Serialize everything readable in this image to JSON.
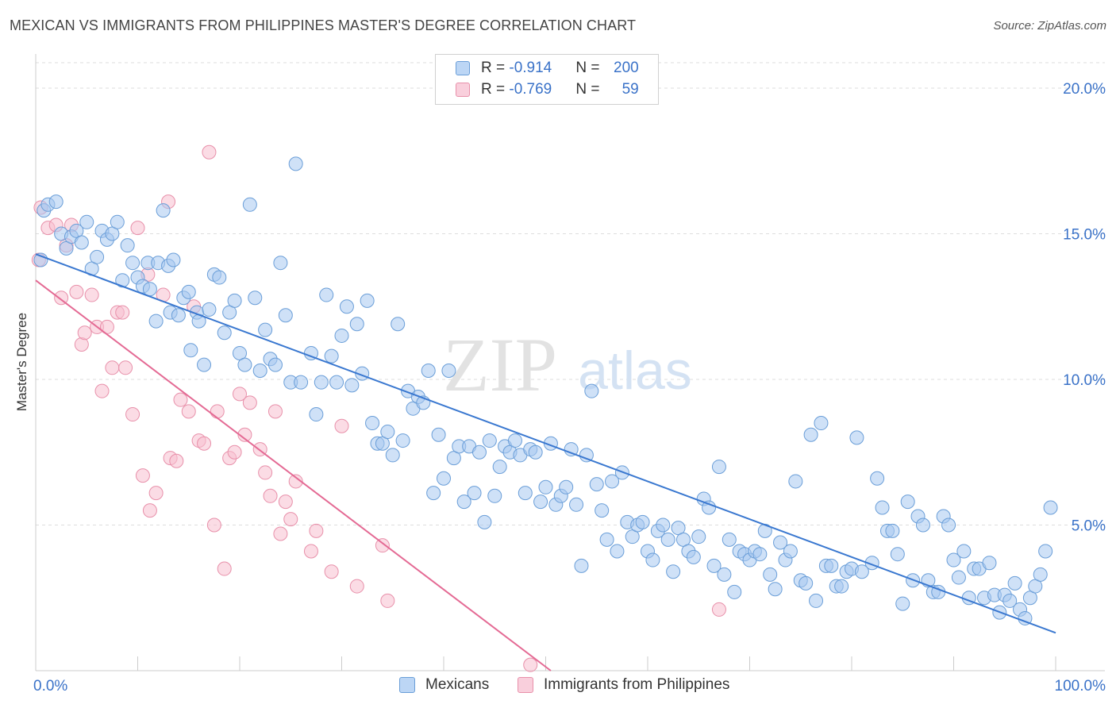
{
  "title": "MEXICAN VS IMMIGRANTS FROM PHILIPPINES MASTER'S DEGREE CORRELATION CHART",
  "source": "Source: ZipAtlas.com",
  "watermark": {
    "zip": "ZIP",
    "atlas": "atlas"
  },
  "legend_top": {
    "series1": {
      "r_label": "R = ",
      "r_value": "-0.914",
      "n_label": "N = ",
      "n_value": "200"
    },
    "series2": {
      "r_label": "R = ",
      "r_value": "-0.769",
      "n_label": "N = ",
      "n_value": "59"
    }
  },
  "legend_bottom": [
    "Mexicans",
    "Immigrants from Philippines"
  ],
  "colors": {
    "blue_fill": "#a8c8f0",
    "blue_stroke": "#6a9ed8",
    "blue_line": "#3a78d0",
    "pink_fill": "#f7bfd0",
    "pink_stroke": "#e890aa",
    "pink_line": "#e46a94",
    "axis_text": "#3a72c8",
    "grid": "#dddddd"
  },
  "chart_data": {
    "type": "scatter",
    "title": "MEXICAN VS IMMIGRANTS FROM PHILIPPINES MASTER'S DEGREE CORRELATION CHART",
    "xlabel": "",
    "ylabel": "Master's Degree",
    "xlim": [
      0,
      100
    ],
    "ylim": [
      0,
      20
    ],
    "x_tick_labels": [
      "0.0%",
      "100.0%"
    ],
    "y_ticks": [
      5,
      10,
      15,
      20
    ],
    "y_tick_labels": [
      "5.0%",
      "10.0%",
      "15.0%",
      "20.0%"
    ],
    "grid": "horizontal dashed",
    "legend": "top-center",
    "series": [
      {
        "name": "Mexicans",
        "r": -0.914,
        "n": 200,
        "trend": {
          "x": [
            0,
            100
          ],
          "y": [
            14.3,
            1.3
          ]
        },
        "points": [
          [
            0.5,
            14.1
          ],
          [
            0.8,
            15.8
          ],
          [
            1.2,
            16.0
          ],
          [
            2,
            16.1
          ],
          [
            2.5,
            15.0
          ],
          [
            3,
            14.5
          ],
          [
            3.5,
            14.9
          ],
          [
            4,
            15.1
          ],
          [
            4.5,
            14.7
          ],
          [
            5,
            15.4
          ],
          [
            5.5,
            13.8
          ],
          [
            6,
            14.2
          ],
          [
            6.5,
            15.1
          ],
          [
            7,
            14.8
          ],
          [
            7.5,
            15.0
          ],
          [
            8,
            15.4
          ],
          [
            8.5,
            13.4
          ],
          [
            9,
            14.6
          ],
          [
            9.5,
            14.0
          ],
          [
            10,
            13.5
          ],
          [
            10.5,
            13.2
          ],
          [
            11,
            14.0
          ],
          [
            11.2,
            13.1
          ],
          [
            11.8,
            12.0
          ],
          [
            12,
            14.0
          ],
          [
            12.5,
            15.8
          ],
          [
            13,
            13.9
          ],
          [
            13.5,
            14.1
          ],
          [
            13.2,
            12.3
          ],
          [
            14,
            12.2
          ],
          [
            14.5,
            12.8
          ],
          [
            15,
            13.0
          ],
          [
            15.2,
            11.0
          ],
          [
            15.8,
            12.3
          ],
          [
            16,
            12.0
          ],
          [
            16.5,
            10.5
          ],
          [
            17,
            12.4
          ],
          [
            17.5,
            13.6
          ],
          [
            18,
            13.5
          ],
          [
            18.5,
            11.6
          ],
          [
            19,
            12.3
          ],
          [
            19.5,
            12.7
          ],
          [
            20,
            10.9
          ],
          [
            20.5,
            10.5
          ],
          [
            21,
            16.0
          ],
          [
            21.5,
            12.8
          ],
          [
            22,
            10.3
          ],
          [
            22.5,
            11.7
          ],
          [
            23,
            10.7
          ],
          [
            23.5,
            10.5
          ],
          [
            24,
            14.0
          ],
          [
            24.5,
            12.2
          ],
          [
            25,
            9.9
          ],
          [
            25.5,
            17.4
          ],
          [
            26,
            9.9
          ],
          [
            27,
            10.9
          ],
          [
            27.5,
            8.8
          ],
          [
            28,
            9.9
          ],
          [
            28.5,
            12.9
          ],
          [
            29,
            10.8
          ],
          [
            29.5,
            9.9
          ],
          [
            30,
            11.5
          ],
          [
            30.5,
            12.5
          ],
          [
            31,
            9.8
          ],
          [
            31.5,
            11.9
          ],
          [
            32,
            10.2
          ],
          [
            32.5,
            12.7
          ],
          [
            33,
            8.5
          ],
          [
            33.5,
            7.8
          ],
          [
            34,
            7.8
          ],
          [
            34.5,
            8.2
          ],
          [
            35,
            7.4
          ],
          [
            35.5,
            11.9
          ],
          [
            36,
            7.9
          ],
          [
            36.5,
            9.6
          ],
          [
            37,
            9.0
          ],
          [
            37.5,
            9.4
          ],
          [
            38,
            9.2
          ],
          [
            38.5,
            10.3
          ],
          [
            39,
            6.1
          ],
          [
            39.5,
            8.1
          ],
          [
            40,
            6.6
          ],
          [
            40.5,
            10.3
          ],
          [
            41,
            7.3
          ],
          [
            41.5,
            7.7
          ],
          [
            42,
            5.8
          ],
          [
            42.5,
            7.7
          ],
          [
            43,
            6.1
          ],
          [
            43.5,
            7.5
          ],
          [
            44,
            5.1
          ],
          [
            44.5,
            7.9
          ],
          [
            45,
            6.0
          ],
          [
            45.5,
            7.0
          ],
          [
            46,
            7.7
          ],
          [
            46.5,
            7.5
          ],
          [
            47,
            7.9
          ],
          [
            47.5,
            7.4
          ],
          [
            48,
            6.1
          ],
          [
            48.5,
            7.6
          ],
          [
            49,
            7.5
          ],
          [
            49.5,
            5.8
          ],
          [
            50,
            6.3
          ],
          [
            50.5,
            7.8
          ],
          [
            51,
            5.7
          ],
          [
            51.5,
            6.0
          ],
          [
            52,
            6.3
          ],
          [
            52.5,
            7.6
          ],
          [
            53,
            5.7
          ],
          [
            53.5,
            3.6
          ],
          [
            54,
            7.4
          ],
          [
            54.5,
            9.6
          ],
          [
            55,
            6.4
          ],
          [
            55.5,
            5.5
          ],
          [
            56,
            4.5
          ],
          [
            56.5,
            6.5
          ],
          [
            57,
            4.1
          ],
          [
            57.5,
            6.8
          ],
          [
            58,
            5.1
          ],
          [
            58.5,
            4.6
          ],
          [
            59,
            5.0
          ],
          [
            59.5,
            5.1
          ],
          [
            60,
            4.1
          ],
          [
            60.5,
            3.8
          ],
          [
            61,
            4.8
          ],
          [
            61.5,
            5.0
          ],
          [
            62,
            4.5
          ],
          [
            62.5,
            3.4
          ],
          [
            63,
            4.9
          ],
          [
            63.5,
            4.5
          ],
          [
            64,
            4.1
          ],
          [
            64.5,
            3.9
          ],
          [
            65,
            4.6
          ],
          [
            65.5,
            5.9
          ],
          [
            66,
            5.6
          ],
          [
            66.5,
            3.6
          ],
          [
            67,
            7.0
          ],
          [
            67.5,
            3.3
          ],
          [
            68,
            4.5
          ],
          [
            68.5,
            2.7
          ],
          [
            69,
            4.1
          ],
          [
            69.5,
            4.0
          ],
          [
            70,
            3.8
          ],
          [
            70.5,
            4.1
          ],
          [
            71,
            4.0
          ],
          [
            71.5,
            4.8
          ],
          [
            72,
            3.3
          ],
          [
            72.5,
            2.8
          ],
          [
            73,
            4.4
          ],
          [
            73.5,
            3.8
          ],
          [
            74,
            4.1
          ],
          [
            74.5,
            6.5
          ],
          [
            75,
            3.1
          ],
          [
            75.5,
            3.0
          ],
          [
            76,
            8.1
          ],
          [
            76.5,
            2.4
          ],
          [
            77,
            8.5
          ],
          [
            77.5,
            3.6
          ],
          [
            78,
            3.6
          ],
          [
            78.5,
            2.9
          ],
          [
            79,
            2.9
          ],
          [
            79.5,
            3.4
          ],
          [
            80,
            3.5
          ],
          [
            80.5,
            8.0
          ],
          [
            81,
            3.4
          ],
          [
            82,
            3.7
          ],
          [
            82.5,
            6.6
          ],
          [
            83,
            5.6
          ],
          [
            83.5,
            4.8
          ],
          [
            84,
            4.8
          ],
          [
            84.5,
            4.0
          ],
          [
            85,
            2.3
          ],
          [
            85.5,
            5.8
          ],
          [
            86,
            3.1
          ],
          [
            86.5,
            5.3
          ],
          [
            87,
            5.0
          ],
          [
            87.5,
            3.1
          ],
          [
            88,
            2.7
          ],
          [
            88.5,
            2.7
          ],
          [
            89,
            5.3
          ],
          [
            89.5,
            5.0
          ],
          [
            90,
            3.8
          ],
          [
            90.5,
            3.2
          ],
          [
            91,
            4.1
          ],
          [
            91.5,
            2.5
          ],
          [
            92,
            3.5
          ],
          [
            92.5,
            3.5
          ],
          [
            93,
            2.5
          ],
          [
            93.5,
            3.7
          ],
          [
            94,
            2.6
          ],
          [
            94.5,
            2.0
          ],
          [
            95,
            2.6
          ],
          [
            95.5,
            2.4
          ],
          [
            96,
            3.0
          ],
          [
            96.5,
            2.1
          ],
          [
            97,
            1.8
          ],
          [
            97.5,
            2.5
          ],
          [
            98,
            2.9
          ],
          [
            98.5,
            3.3
          ],
          [
            99,
            4.1
          ],
          [
            99.5,
            5.6
          ]
        ]
      },
      {
        "name": "Immigrants from Philippines",
        "r": -0.769,
        "n": 59,
        "trend": {
          "x": [
            0,
            50.5
          ],
          "y": [
            13.4,
            0
          ]
        },
        "points": [
          [
            0.3,
            14.1
          ],
          [
            0.5,
            15.9
          ],
          [
            1.2,
            15.2
          ],
          [
            2,
            15.3
          ],
          [
            2.5,
            12.8
          ],
          [
            3,
            14.6
          ],
          [
            3.5,
            15.3
          ],
          [
            4,
            13.0
          ],
          [
            4.5,
            11.2
          ],
          [
            4.8,
            11.6
          ],
          [
            5.5,
            12.9
          ],
          [
            6,
            11.8
          ],
          [
            6.5,
            9.6
          ],
          [
            7,
            11.8
          ],
          [
            7.5,
            10.4
          ],
          [
            8,
            12.3
          ],
          [
            8.5,
            12.3
          ],
          [
            8.8,
            10.4
          ],
          [
            9.5,
            8.8
          ],
          [
            10,
            15.2
          ],
          [
            10.5,
            6.7
          ],
          [
            11,
            13.6
          ],
          [
            11.2,
            5.5
          ],
          [
            11.8,
            6.1
          ],
          [
            12.5,
            12.9
          ],
          [
            13,
            16.1
          ],
          [
            13.2,
            7.3
          ],
          [
            13.8,
            7.2
          ],
          [
            14.2,
            9.3
          ],
          [
            15,
            8.9
          ],
          [
            15.5,
            12.5
          ],
          [
            16,
            7.9
          ],
          [
            16.5,
            7.8
          ],
          [
            17,
            17.8
          ],
          [
            17.5,
            5.0
          ],
          [
            17.8,
            8.9
          ],
          [
            18.5,
            3.5
          ],
          [
            19,
            7.3
          ],
          [
            19.5,
            7.5
          ],
          [
            20,
            9.5
          ],
          [
            20.5,
            8.1
          ],
          [
            21,
            9.2
          ],
          [
            22,
            7.6
          ],
          [
            22.5,
            6.8
          ],
          [
            23,
            6.0
          ],
          [
            23.5,
            8.9
          ],
          [
            24,
            4.7
          ],
          [
            24.5,
            5.8
          ],
          [
            25,
            5.2
          ],
          [
            25.5,
            6.5
          ],
          [
            27,
            4.1
          ],
          [
            27.5,
            4.8
          ],
          [
            29,
            3.4
          ],
          [
            30,
            8.4
          ],
          [
            31.5,
            2.9
          ],
          [
            34,
            4.3
          ],
          [
            34.5,
            2.4
          ],
          [
            48.5,
            0.2
          ],
          [
            67,
            2.1
          ]
        ]
      }
    ]
  }
}
